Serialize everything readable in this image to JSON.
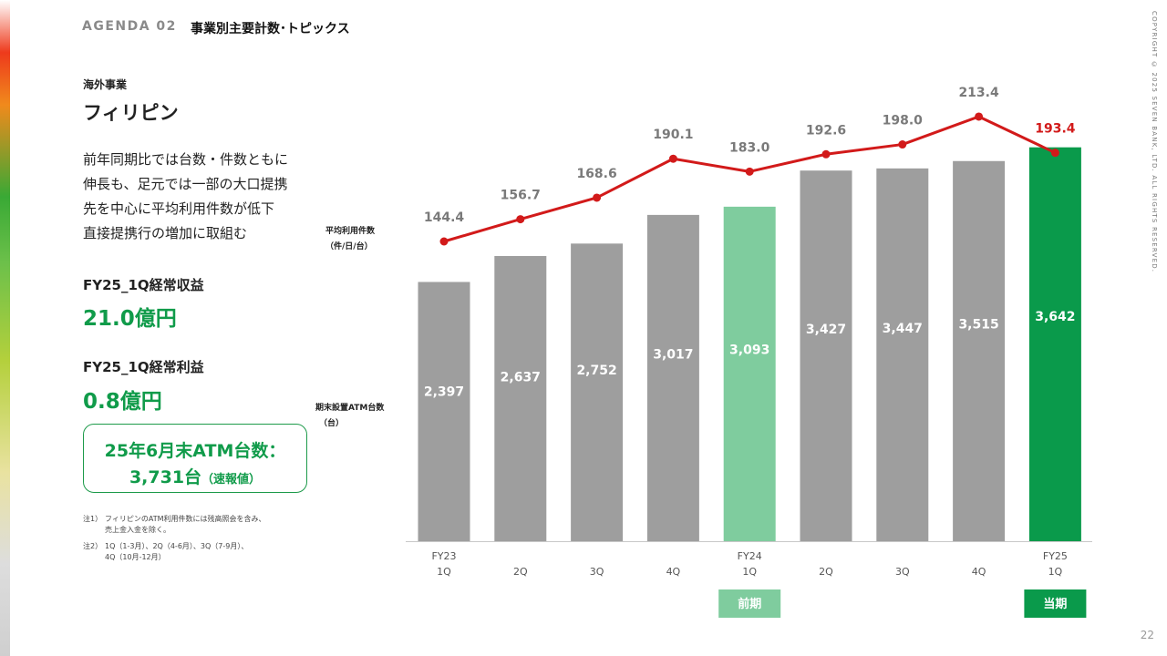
{
  "header": {
    "agenda_label": "AGENDA 02",
    "agenda_title": "事業別主要計数･トピックス",
    "copyright": "COPYRIGHT © 2025 SEVEN BANK, LTD. ALL RIGHTS RESERVED."
  },
  "left": {
    "section_label": "海外事業",
    "country": "フィリピン",
    "description_lines": [
      "前年同期比では台数・件数ともに",
      "伸長も、足元では一部の大口提携",
      "先を中心に平均利用件数が低下",
      "直接提携行の増加に取組む"
    ],
    "kpi1_label": "FY25_1Q経常収益",
    "kpi1_value": "21.0億円",
    "kpi2_label": "FY25_1Q経常利益",
    "kpi2_value": "0.8億円",
    "atm_box_line1": "25年6月末ATM台数：",
    "atm_box_value": "3,731台",
    "atm_box_note": "（速報値）",
    "notes": [
      {
        "num": "注1）",
        "lines": [
          "フィリピンのATM利用件数には残高照会を含み、",
          "売上金入金を除く。"
        ]
      },
      {
        "num": "注2）",
        "lines": [
          "1Q（1-3月）、2Q（4-6月）、3Q（7-9月）、",
          "4Q（10月-12月）"
        ]
      }
    ]
  },
  "chart_data": {
    "type": "bar",
    "categories": [
      "FY23\n1Q",
      "2Q",
      "3Q",
      "4Q",
      "FY24\n1Q",
      "2Q",
      "3Q",
      "4Q",
      "FY25\n1Q"
    ],
    "series": [
      {
        "name": "期末設置ATM台数（台）",
        "type": "bar",
        "values": [
          2397,
          2637,
          2752,
          3017,
          3093,
          3427,
          3447,
          3515,
          3642
        ],
        "labels": [
          "2,397",
          "2,637",
          "2,752",
          "3,017",
          "3,093",
          "3,427",
          "3,447",
          "3,515",
          "3,642"
        ],
        "colors": [
          "#9e9e9e",
          "#9e9e9e",
          "#9e9e9e",
          "#9e9e9e",
          "#7fcc9e",
          "#9e9e9e",
          "#9e9e9e",
          "#9e9e9e",
          "#0a9a4b"
        ]
      },
      {
        "name": "平均利用件数（件/日/台）",
        "type": "line",
        "values": [
          144.4,
          156.7,
          168.6,
          190.1,
          183.0,
          192.6,
          198.0,
          213.4,
          193.4
        ],
        "labels": [
          "144.4",
          "156.7",
          "168.6",
          "190.1",
          "183.0",
          "192.6",
          "198.0",
          "213.4",
          "193.4"
        ],
        "color": "#d21a1a"
      }
    ],
    "axis_label_line": [
      "平均利用件数",
      "（件/日/台）"
    ],
    "axis_label_bar": [
      "期末設置ATM台数",
      "（台）"
    ],
    "badges": [
      {
        "text": "前期",
        "index": 4,
        "color": "#7fcc9e"
      },
      {
        "text": "当期",
        "index": 8,
        "color": "#0a9a4b"
      }
    ]
  },
  "page_number": "22"
}
